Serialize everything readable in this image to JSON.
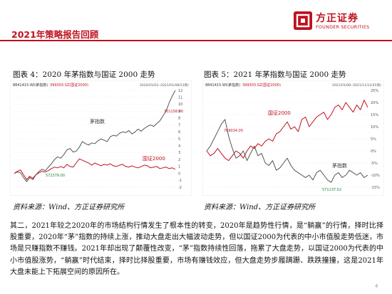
{
  "header": {
    "title": "2021年策略报告回顾",
    "logo_cn": "方正证券",
    "logo_en": "FOUNDER SECURITIES",
    "accent_color": "#c0111f"
  },
  "figures": [
    {
      "caption": "图表 4：2020 年茅指数与国证 2000 走势",
      "source": "资料来源：Wind、方正证券研究所",
      "legend": "8841415.WI(茅指数)",
      "legend2": "399303.SZ(国证2000)",
      "date_range": "2020/01/03--2021/01/08(53周)",
      "annotations": {
        "peak": "701158.00",
        "low": "572379.00",
        "mao": "茅指数",
        "gz": "国证2000"
      },
      "y_ticks": [
        "12",
        "11",
        "10",
        "9",
        "8",
        "7",
        "6",
        "5",
        "4",
        "3",
        "2",
        "1",
        "0",
        "-1",
        "-2"
      ],
      "colors": {
        "mao": "#555555",
        "gz": "#c0111f"
      }
    },
    {
      "caption": "图表 5：2021 年茅指数与国证 2000 走势",
      "source": "资料来源：Wind、方正证券研究所",
      "legend": "8841415.WI(茅指数)",
      "legend2": "399303.SZ(国证2000)",
      "date_range": "2021/01/08--2021/11/12(45周)",
      "annotations": {
        "peak": "769034.05",
        "low": "571137.52",
        "mao": "茅指数",
        "gz": "国证2000"
      },
      "y_ticks": [
        "25%",
        "20%",
        "15%",
        "10%",
        "5%",
        "0%",
        "-5%",
        "-10%",
        "-15%"
      ],
      "colors": {
        "mao": "#555555",
        "gz": "#c0111f"
      }
    }
  ],
  "chart_data": [
    {
      "type": "line",
      "title": "图表 4：2020 年茅指数与国证 2000 走势",
      "ylim": [
        -2,
        12
      ],
      "series": [
        {
          "name": "茅指数",
          "values": [
            0.0,
            0.2,
            0.1,
            -0.6,
            -1.2,
            -0.6,
            -0.9,
            -0.2,
            0.3,
            0.6,
            0.4,
            0.9,
            1.4,
            2.0,
            2.4,
            2.2,
            2.7,
            3.4,
            3.6,
            3.1,
            3.2,
            3.8,
            4.6,
            4.3,
            4.1,
            4.4,
            4.3,
            4.7,
            5.0,
            4.8,
            4.6,
            5.3,
            5.5,
            5.4,
            5.8,
            6.0,
            5.9,
            6.2,
            5.7,
            6.0,
            6.4,
            6.1,
            6.5,
            6.8,
            7.0,
            6.8,
            7.2,
            7.6,
            8.3,
            9.0,
            10.2,
            11.2,
            12.0
          ]
        },
        {
          "name": "国证2000",
          "values": [
            0.0,
            0.3,
            0.5,
            -0.2,
            -0.9,
            -0.4,
            -0.7,
            -0.2,
            0.1,
            0.3,
            0.2,
            0.4,
            0.7,
            0.9,
            0.8,
            1.0,
            0.8,
            1.3,
            1.0,
            0.9,
            1.5,
            2.1,
            1.9,
            1.7,
            1.5,
            1.2,
            1.5,
            1.3,
            1.1,
            1.3,
            1.2,
            1.4,
            1.1,
            1.0,
            1.2,
            1.3,
            1.0,
            0.9,
            1.1,
            0.9,
            0.8,
            1.0,
            1.2,
            1.1,
            0.8,
            0.9,
            1.0,
            0.7,
            0.8,
            0.9,
            0.7,
            0.8,
            0.6
          ]
        }
      ]
    },
    {
      "type": "line",
      "title": "图表 5：2021 年茅指数与国证 2000 走势",
      "ylim": [
        -15,
        25
      ],
      "series": [
        {
          "name": "茅指数",
          "values": [
            0,
            2,
            5,
            8,
            11,
            13,
            6,
            1,
            -3,
            -2,
            0,
            -4,
            -1,
            2,
            -2,
            -1,
            -5,
            -6,
            -4,
            -8,
            -7,
            -5,
            -3,
            -6,
            -8,
            -9,
            -10,
            -11,
            -10,
            -12,
            -9,
            -8,
            -10,
            -12,
            -13,
            -10,
            -9,
            -11,
            -10,
            -8,
            -9,
            -10,
            -9,
            -11,
            -10
          ]
        },
        {
          "name": "国证2000",
          "values": [
            0,
            -2,
            -1,
            1,
            -1,
            -3,
            -4,
            -2,
            0,
            -1,
            -3,
            0,
            2,
            1,
            3,
            2,
            4,
            5,
            4,
            7,
            8,
            10,
            12,
            9,
            10,
            8,
            13,
            14,
            10,
            12,
            14,
            15,
            16,
            13,
            15,
            18,
            19,
            17,
            20,
            18,
            16,
            19,
            17,
            21,
            18
          ]
        }
      ]
    }
  ],
  "body": {
    "text": "其二，2021年较之2020年的市场结构行情发生了根本性的转变，2020年是趋势性行情，是“躺赢”的行情，择时比择股重要，2020年“茅”指数的持续上涨，推动大盘走出大幅波动走势，但以国证2000为代表的中小市值股走势低迷，市场是只赚指数不赚钱。2021年却出现了颠覆性改变，“茅”指数持续性回落，拖累了大盘走势，以国证2000为代表的中小市值股涨势，“躺赢”时代结束，择时比择股重要，市场有赚钱效应，但大盘走势步履蹒跚、跌跌撞撞，这是2021年大盘未能上下拓展空间的原因所在。"
  },
  "page_number": "4"
}
